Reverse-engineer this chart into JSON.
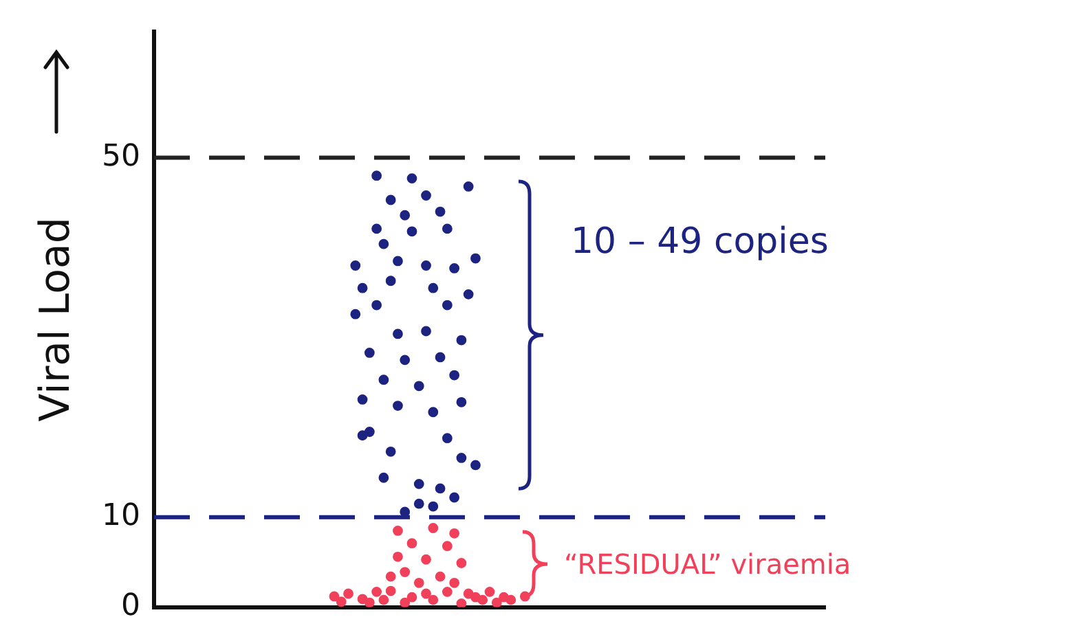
{
  "chart_data": {
    "type": "scatter",
    "ylabel": "Viral Load",
    "ylim": [
      0,
      64
    ],
    "yticks": [
      0,
      10,
      50
    ],
    "tick_labels": "y",
    "grid": false,
    "legend": false,
    "marker": "circle",
    "categories": [
      null,
      null,
      null,
      null,
      null,
      null,
      null,
      null,
      null,
      null,
      null,
      null,
      null,
      null,
      null,
      null,
      null,
      null,
      null,
      null,
      null,
      null,
      null,
      null,
      null,
      null,
      null,
      null,
      null,
      null,
      null,
      null,
      null,
      null,
      null,
      null,
      null,
      null,
      null,
      null,
      null,
      null,
      null,
      null,
      null,
      null,
      null,
      null,
      null,
      null,
      null,
      null,
      null,
      null,
      null,
      null,
      null,
      null,
      null,
      null,
      null,
      null,
      null,
      null,
      null,
      null,
      null,
      null,
      null,
      null,
      null,
      null,
      null,
      null,
      null,
      null,
      null,
      null,
      null,
      null,
      null,
      null,
      null,
      null,
      null,
      null,
      null,
      null,
      null,
      null,
      null,
      null,
      null,
      null,
      null
    ],
    "series": [
      {
        "color": "#1c2380",
        "values": [
          null,
          null,
          null,
          null,
          null,
          null,
          null,
          null,
          null,
          null,
          null,
          null,
          null,
          null,
          null,
          null,
          null,
          null,
          null,
          null,
          null,
          null,
          null,
          null,
          null,
          null,
          null,
          null,
          38.0,
          35.5,
          28.3,
          48.0,
          40.4,
          45.3,
          38.5,
          43.6,
          47.7,
          24.6,
          45.8,
          35.5,
          44.0,
          42.1,
          37.7,
          29.7,
          46.8,
          38.8,
          null,
          null,
          null,
          null,
          null,
          null,
          null,
          null,
          null,
          null,
          null,
          null,
          null,
          null,
          null,
          null,
          null,
          null,
          null,
          null,
          null,
          null,
          null,
          null,
          null,
          null,
          null,
          null,
          null,
          null,
          null,
          null,
          null,
          null,
          null,
          null,
          null,
          null,
          null,
          null,
          null,
          null,
          null,
          null,
          null,
          null,
          null,
          null,
          null
        ]
      },
      {
        "color": "#1c2380",
        "values": [
          null,
          null,
          null,
          null,
          null,
          null,
          null,
          null,
          null,
          null,
          null,
          null,
          null,
          null,
          null,
          null,
          null,
          null,
          null,
          null,
          null,
          null,
          null,
          null,
          null,
          null,
          null,
          null,
          32.6,
          23.1,
          19.5,
          42.1,
          25.3,
          36.3,
          30.4,
          27.5,
          41.8,
          11.5,
          38.0,
          21.7,
          27.8,
          33.6,
          25.8,
          22.8,
          34.8,
          15.8,
          null,
          null,
          null,
          null,
          null,
          null,
          null,
          null,
          null,
          null,
          null,
          null,
          null,
          null,
          null,
          null,
          null,
          null,
          null,
          null,
          null,
          null,
          null,
          null,
          null,
          null,
          null,
          null,
          null,
          null,
          null,
          null,
          null,
          null,
          null,
          null,
          null,
          null,
          null,
          null,
          null,
          null,
          null,
          null,
          null,
          null,
          null,
          null,
          null
        ]
      },
      {
        "color": "#1c2380",
        "values": [
          null,
          null,
          null,
          null,
          null,
          null,
          null,
          null,
          null,
          null,
          null,
          null,
          null,
          null,
          null,
          null,
          null,
          null,
          null,
          null,
          null,
          null,
          null,
          null,
          null,
          null,
          null,
          null,
          null,
          19.1,
          null,
          33.6,
          14.4,
          17.3,
          22.4,
          10.6,
          null,
          13.7,
          30.7,
          11.2,
          13.2,
          18.8,
          12.2,
          16.6,
          null,
          null,
          null,
          null,
          null,
          null,
          null,
          null,
          null,
          null,
          null,
          null,
          null,
          null,
          null,
          null,
          null,
          null,
          null,
          null,
          null,
          null,
          null,
          null,
          null,
          null,
          null,
          null,
          null,
          null,
          null,
          null,
          null,
          null,
          null,
          null,
          null,
          null,
          null,
          null,
          null,
          null,
          null,
          null,
          null,
          null,
          null,
          null,
          null,
          null,
          null
        ]
      },
      {
        "color": "#f0405a",
        "values": [
          null,
          null,
          null,
          null,
          null,
          null,
          null,
          null,
          null,
          null,
          null,
          null,
          null,
          null,
          null,
          null,
          null,
          null,
          null,
          null,
          null,
          null,
          null,
          null,
          null,
          1.2,
          0.6,
          1.5,
          null,
          0.9,
          0.5,
          1.7,
          0.8,
          3.4,
          8.5,
          3.9,
          7.1,
          2.7,
          5.3,
          8.8,
          3.4,
          6.8,
          8.2,
          4.9,
          1.5,
          1.1,
          0.8,
          1.7,
          0.5,
          1.1,
          0.8,
          null,
          1.2,
          null,
          null,
          null,
          null,
          null,
          null,
          null,
          null,
          null,
          null,
          null,
          null,
          null,
          null,
          null,
          null,
          null,
          null,
          null,
          null,
          null,
          null,
          null,
          null,
          null,
          null,
          null,
          null,
          null,
          null,
          null,
          null,
          null,
          null,
          null,
          null,
          null,
          null,
          null,
          null,
          null,
          null
        ]
      },
      {
        "color": "#f0405a",
        "values": [
          null,
          null,
          null,
          null,
          null,
          null,
          null,
          null,
          null,
          null,
          null,
          null,
          null,
          null,
          null,
          null,
          null,
          null,
          null,
          null,
          null,
          null,
          null,
          null,
          null,
          null,
          null,
          null,
          null,
          null,
          null,
          null,
          null,
          1.8,
          5.6,
          0.5,
          1.1,
          null,
          1.5,
          0.8,
          null,
          1.7,
          2.7,
          0.4,
          null,
          null,
          null,
          null,
          null,
          null,
          null,
          null,
          null,
          null,
          null,
          null,
          null,
          null,
          null,
          null,
          null,
          null,
          null,
          null,
          null,
          null,
          null,
          null,
          null,
          null,
          null,
          null,
          null,
          null,
          null,
          null,
          null,
          null,
          null,
          null,
          null,
          null,
          null,
          null,
          null,
          null,
          null,
          null,
          null,
          null,
          null,
          null,
          null,
          null,
          null
        ]
      }
    ],
    "ref_lines": [
      {
        "axis": "y",
        "value": 50,
        "color": "#222222",
        "line_style": "dashed"
      },
      {
        "axis": "y",
        "value": 10,
        "color": "#1c2380",
        "line_style": "dashed"
      }
    ],
    "annotations": [
      "10 – 49 copies",
      "“RESIDUAL” viraemia"
    ]
  }
}
